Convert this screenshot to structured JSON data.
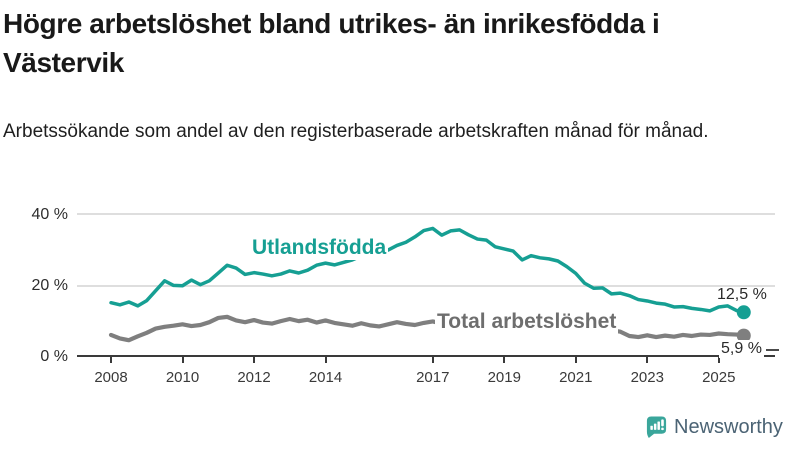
{
  "header": {
    "title": "Högre arbetslöshet bland utrikes- än inrikesfödda i Västervik",
    "subtitle": "Arbetssökande som andel av den registerbaserade arbetskraften månad för månad."
  },
  "chart_data": {
    "type": "line",
    "title": "Högre arbetslöshet bland utrikes- än inrikesfödda i Västervik",
    "xlabel": "",
    "ylabel": "",
    "ylim": [
      0,
      40
    ],
    "x_range": [
      2008,
      2025.7
    ],
    "grid": "horizontal",
    "legend_position": "inline-labels",
    "y_ticks": [
      {
        "label": "0 %",
        "value": 0
      },
      {
        "label": "20 %",
        "value": 20
      },
      {
        "label": "40 %",
        "value": 40
      }
    ],
    "x_ticks": [
      {
        "label": "2008",
        "year": 2008
      },
      {
        "label": "2010",
        "year": 2010
      },
      {
        "label": "2012",
        "year": 2012
      },
      {
        "label": "2014",
        "year": 2014
      },
      {
        "label": "2017",
        "year": 2017
      },
      {
        "label": "2019",
        "year": 2019
      },
      {
        "label": "2021",
        "year": 2021
      },
      {
        "label": "2023",
        "year": 2023
      },
      {
        "label": "2025",
        "year": 2025
      }
    ],
    "series": [
      {
        "name": "Utlandsfödda",
        "color": "#169f93",
        "end_label": "12,5 %",
        "end_value": 12.5,
        "x": [
          2008,
          2008.25,
          2008.5,
          2008.75,
          2009,
          2009.25,
          2009.5,
          2009.75,
          2010,
          2010.25,
          2010.5,
          2010.75,
          2011,
          2011.25,
          2011.5,
          2011.75,
          2012,
          2012.25,
          2012.5,
          2012.75,
          2013,
          2013.25,
          2013.5,
          2013.75,
          2014,
          2014.25,
          2014.5,
          2014.75,
          2015,
          2015.25,
          2015.5,
          2015.75,
          2016,
          2016.25,
          2016.5,
          2016.75,
          2017,
          2017.25,
          2017.5,
          2017.75,
          2018,
          2018.25,
          2018.5,
          2018.75,
          2019,
          2019.25,
          2019.5,
          2019.75,
          2020,
          2020.25,
          2020.5,
          2020.75,
          2021,
          2021.25,
          2021.5,
          2021.75,
          2022,
          2022.25,
          2022.5,
          2022.75,
          2023,
          2023.25,
          2023.5,
          2023.75,
          2024,
          2024.25,
          2024.5,
          2024.75,
          2025,
          2025.25,
          2025.5,
          2025.7
        ],
        "values": [
          15.2,
          14.6,
          15.4,
          14.3,
          15.8,
          18.6,
          21.4,
          20.1,
          20.0,
          21.6,
          20.3,
          21.4,
          23.6,
          25.8,
          25.0,
          23.2,
          23.7,
          23.3,
          22.8,
          23.3,
          24.2,
          23.6,
          24.4,
          25.8,
          26.4,
          25.9,
          26.6,
          27.3,
          28.4,
          29.2,
          29.0,
          30.1,
          31.4,
          32.3,
          33.8,
          35.6,
          36.2,
          34.3,
          35.5,
          35.8,
          34.4,
          33.2,
          32.9,
          31.0,
          30.4,
          29.8,
          27.3,
          28.5,
          27.9,
          27.6,
          27.0,
          25.4,
          23.5,
          20.7,
          19.3,
          19.4,
          17.7,
          17.9,
          17.2,
          16.1,
          15.7,
          15.1,
          14.8,
          14.0,
          14.1,
          13.6,
          13.3,
          12.9,
          14.0,
          14.3,
          13.0,
          12.5
        ]
      },
      {
        "name": "Total arbetslöshet",
        "color": "#7f7f7f",
        "end_label": "5,9 %",
        "end_value": 5.9,
        "x": [
          2008,
          2008.25,
          2008.5,
          2008.75,
          2009,
          2009.25,
          2009.5,
          2009.75,
          2010,
          2010.25,
          2010.5,
          2010.75,
          2011,
          2011.25,
          2011.5,
          2011.75,
          2012,
          2012.25,
          2012.5,
          2012.75,
          2013,
          2013.25,
          2013.5,
          2013.75,
          2014,
          2014.25,
          2014.5,
          2014.75,
          2015,
          2015.25,
          2015.5,
          2015.75,
          2016,
          2016.25,
          2016.5,
          2016.75,
          2017,
          2017.25,
          2017.5,
          2017.75,
          2018,
          2018.25,
          2018.5,
          2018.75,
          2019,
          2019.25,
          2019.5,
          2019.75,
          2020,
          2020.25,
          2020.5,
          2020.75,
          2021,
          2021.25,
          2021.5,
          2021.75,
          2022,
          2022.25,
          2022.5,
          2022.75,
          2023,
          2023.25,
          2023.5,
          2023.75,
          2024,
          2024.25,
          2024.5,
          2024.75,
          2025,
          2025.25,
          2025.5,
          2025.7
        ],
        "values": [
          6.1,
          5.1,
          4.6,
          5.7,
          6.7,
          7.9,
          8.4,
          8.7,
          9.1,
          8.6,
          8.9,
          9.7,
          10.9,
          11.2,
          10.2,
          9.7,
          10.3,
          9.6,
          9.3,
          10.0,
          10.6,
          10.0,
          10.4,
          9.6,
          10.2,
          9.5,
          9.1,
          8.7,
          9.4,
          8.8,
          8.5,
          9.1,
          9.7,
          9.2,
          8.9,
          9.5,
          9.9,
          9.3,
          9.0,
          9.4,
          9.1,
          8.6,
          8.8,
          8.4,
          8.7,
          8.2,
          8.0,
          8.3,
          8.6,
          9.6,
          9.8,
          9.3,
          9.0,
          8.5,
          8.0,
          7.6,
          7.4,
          7.0,
          5.8,
          5.5,
          6.0,
          5.5,
          5.9,
          5.6,
          6.1,
          5.8,
          6.2,
          6.1,
          6.5,
          6.3,
          6.2,
          5.9
        ]
      }
    ]
  },
  "footer": {
    "brand": "Newsworthy",
    "brand_icon": "newsworthy-bar-chart-bubble-icon"
  }
}
